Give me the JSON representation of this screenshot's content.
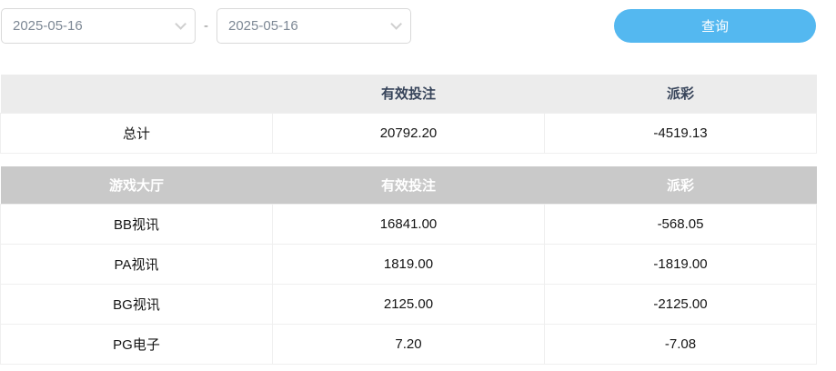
{
  "filters": {
    "date_from": "2025-05-16",
    "date_to": "2025-05-16",
    "range_separator": "-",
    "query_button_label": "查询"
  },
  "summary_table": {
    "headers": {
      "label": "",
      "valid_bets": "有效投注",
      "payout": "派彩"
    },
    "rows": [
      {
        "label": "总计",
        "valid_bets": "20792.20",
        "payout": "-4519.13"
      }
    ]
  },
  "detail_table": {
    "headers": {
      "label": "游戏大厅",
      "valid_bets": "有效投注",
      "payout": "派彩"
    },
    "rows": [
      {
        "label": "BB视讯",
        "valid_bets": "16841.00",
        "payout": "-568.05"
      },
      {
        "label": "PA视讯",
        "valid_bets": "1819.00",
        "payout": "-1819.00"
      },
      {
        "label": "BG视讯",
        "valid_bets": "2125.00",
        "payout": "-2125.00"
      },
      {
        "label": "PG电子",
        "valid_bets": "7.20",
        "payout": "-7.08"
      }
    ]
  },
  "colors": {
    "accent_blue": "#54b8f0",
    "summary_header_bg": "#ececec",
    "summary_header_text": "#37445a",
    "detail_header_bg": "#c9c9c9",
    "detail_header_text": "#ffffff",
    "cell_border": "#efefef"
  }
}
